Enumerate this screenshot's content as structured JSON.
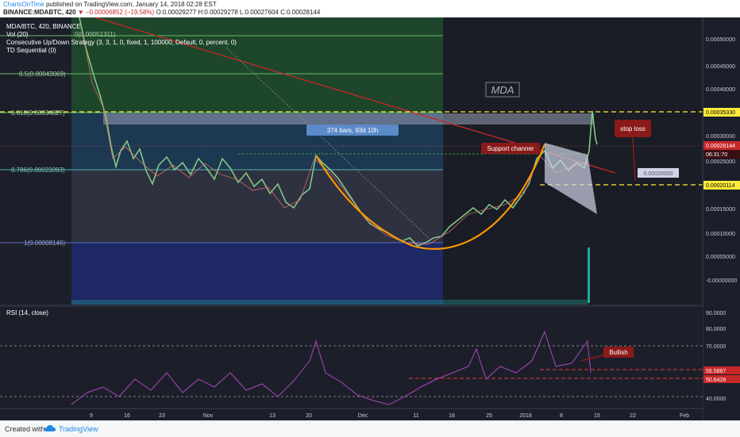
{
  "header": {
    "publisher": "ChartsOnTime",
    "published_text": "published on TradingView.com, January 14, 2018 02:28 EST",
    "symbol": "BINANCE:MDABTC, 420",
    "change": "−0.00006852 (−19.58%)",
    "ohlc": "O:0.00029277 H:0.00029278 L:0.00027604 C:0.00028144"
  },
  "legend": {
    "title": "MDA/BTC, 420, BINANCE",
    "vol": "Vol (20)",
    "strategy": "Consecutive Up/Down Strategy (3, 3, 1, 0, fixed, 1, 100000, Default, 0, percent, 0)",
    "td": "TD Sequential (0)"
  },
  "fib": [
    {
      "label": "0.5(0.00043069)",
      "value": 0.00043069
    },
    {
      "label": "0.618(0.00034827)",
      "value": 0.00034827
    },
    {
      "label": "0.786(0.00023093)",
      "value": 0.00023093
    },
    {
      "label": "1(0.00008146)",
      "value": 8.146e-05
    }
  ],
  "fib_top_label": "0(0.00051311)",
  "annotations": {
    "watermark": "MDA",
    "bars_range": "374 bars, 93d 10h",
    "support": "Support channer",
    "stop_loss": "stop loss",
    "bullish": "Bullish",
    "price_box": "0.00020000"
  },
  "price_axis": {
    "labels": [
      "0.00050000",
      "0.00045000",
      "0.00040000",
      "0.00030000",
      "0.00025000",
      "0.00015000",
      "0.00010000",
      "0.00005000",
      "-0.00000000"
    ],
    "tags": [
      {
        "text": "0.00035330",
        "kind": "yellow"
      },
      {
        "text": "0.00028144",
        "kind": "red"
      },
      {
        "text": "06:31:70",
        "kind": "dark"
      },
      {
        "text": "0.00020114",
        "kind": "yellow"
      }
    ]
  },
  "rsi": {
    "title": "RSI (14, close)",
    "labels": [
      "90.0000",
      "80.0000",
      "70.0000",
      "40.0000"
    ],
    "tags": [
      "55.5887",
      "50.6428"
    ]
  },
  "time_axis": [
    "9",
    "16",
    "23",
    "Nov",
    "13",
    "20",
    "Dec",
    "11",
    "18",
    "25",
    "2018",
    "8",
    "15",
    "22",
    "Feb"
  ],
  "footer": {
    "created": "Created with",
    "brand": "TradingView"
  },
  "colors": {
    "background": "#1c1f2a",
    "fib_green": "#2e7d32",
    "fib_blue": "#1a237e",
    "fib_line": "#4caf50",
    "candle_up": "#4caf50",
    "candle_down": "#e53935",
    "yellow": "#ffeb3b",
    "trend_red": "#c62828",
    "curve_orange": "#ff9800",
    "rsi_purple": "#9c27b0"
  },
  "chart_data": {
    "type": "line",
    "title": "MDA/BTC, 420, BINANCE",
    "xlabel": "",
    "ylabel": "",
    "ylim": [
      -2e-05,
      0.00053
    ],
    "x": [
      "9",
      "16",
      "23",
      "Nov",
      "13",
      "20",
      "Dec",
      "11",
      "18",
      "25",
      "2018",
      "8",
      "15"
    ],
    "series": [
      {
        "values": [
          0.00048,
          0.00029,
          0.00026,
          0.00024,
          0.00021,
          0.00027,
          0.0002,
          0.0001,
          0.00011,
          0.00016,
          0.00019,
          0.00023,
          0.00028
        ]
      }
    ],
    "levels": {
      "upper_dashed": 0.0003533,
      "lower_dashed": 0.00020114,
      "last_price": 0.00028144
    }
  }
}
